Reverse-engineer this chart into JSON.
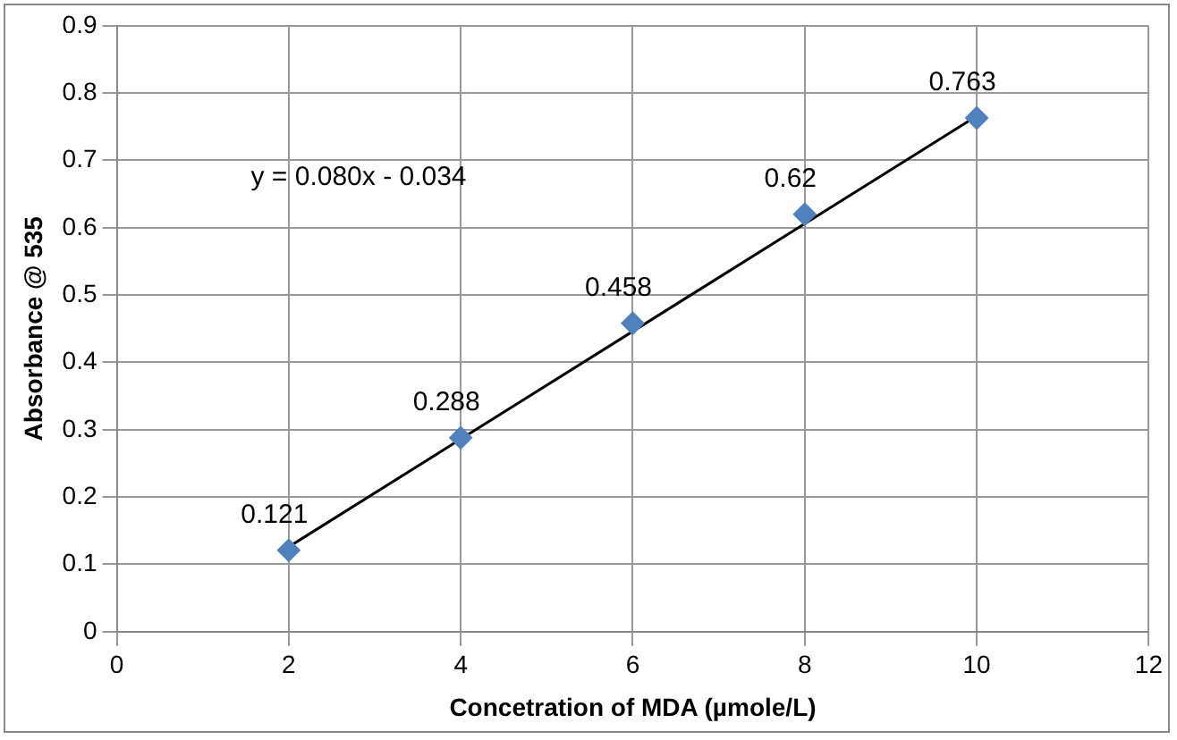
{
  "chart_data": {
    "type": "scatter",
    "xlabel": "Concetration of MDA (µmole/L)",
    "ylabel": "Absorbance @ 535",
    "x": [
      2,
      4,
      6,
      8,
      10
    ],
    "series": [
      {
        "color": "#4f81bd",
        "values": [
          0.121,
          0.288,
          0.458,
          0.62,
          0.763
        ],
        "value_labels": [
          "0.121",
          "0.288",
          "0.458",
          "0.62",
          "0.763"
        ],
        "marker": "diamond"
      },
      {
        "type": "line",
        "color": "#000000",
        "x": [
          2,
          10
        ],
        "values": [
          0.126,
          0.766
        ],
        "marker": "none"
      }
    ],
    "annotations": [
      "y = 0.080x - 0.034"
    ],
    "xlim": [
      0,
      12
    ],
    "xticks": [
      0,
      2,
      4,
      6,
      8,
      10,
      12
    ],
    "ylim": [
      0,
      0.9
    ],
    "yticks": [
      0,
      0.1,
      0.2,
      0.3,
      0.4,
      0.5,
      0.6,
      0.7,
      0.8,
      0.9
    ],
    "grid": true,
    "legend": false
  }
}
